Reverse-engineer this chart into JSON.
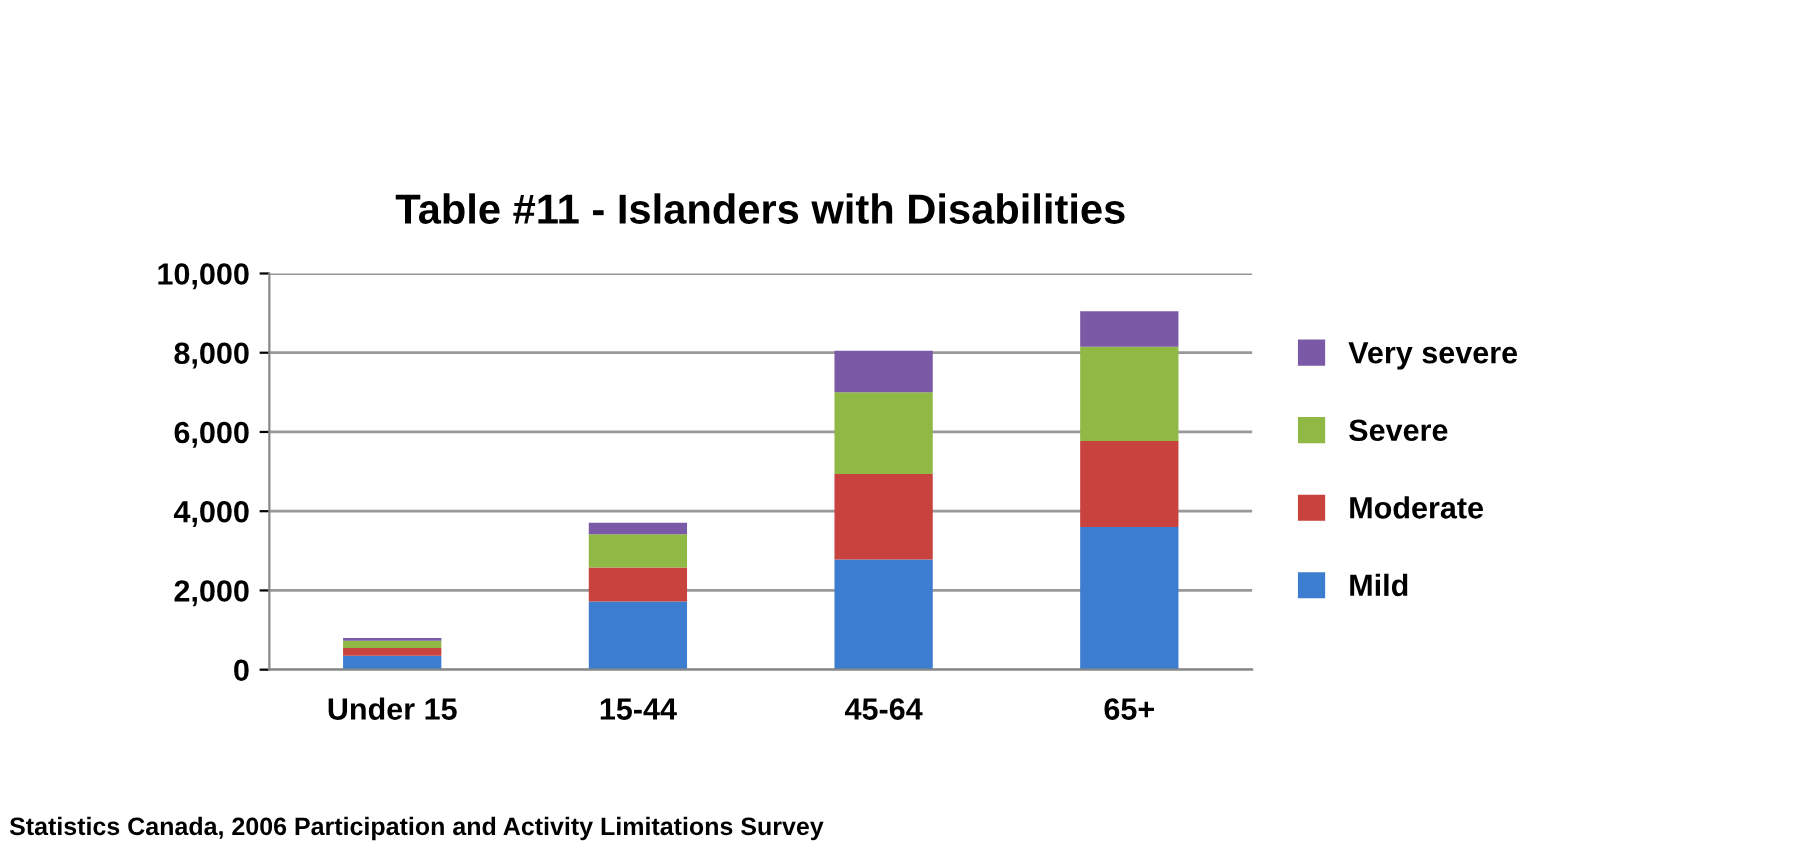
{
  "chart_data": {
    "type": "bar",
    "stacked": true,
    "title": "Table #11 - Islanders with Disabilities",
    "categories": [
      "Under 15",
      "15-44",
      "45-64",
      "65+"
    ],
    "series": [
      {
        "name": "Mild",
        "color": "#3c7dd0",
        "values": [
          350,
          1720,
          2780,
          3600
        ]
      },
      {
        "name": "Moderate",
        "color": "#c8423e",
        "values": [
          200,
          860,
          2160,
          2170
        ]
      },
      {
        "name": "Severe",
        "color": "#8fb944",
        "values": [
          180,
          840,
          2060,
          2380
        ]
      },
      {
        "name": "Very severe",
        "color": "#7a5aa6",
        "values": [
          70,
          290,
          1050,
          900
        ]
      }
    ],
    "ylim": [
      0,
      10000
    ],
    "yticks": [
      {
        "value": 0,
        "label": "0"
      },
      {
        "value": 2000,
        "label": "2,000"
      },
      {
        "value": 4000,
        "label": "4,000"
      },
      {
        "value": 6000,
        "label": "6,000"
      },
      {
        "value": 8000,
        "label": "8,000"
      },
      {
        "value": 10000,
        "label": "10,000"
      }
    ],
    "grid": "y",
    "legend": "right",
    "annotations": [
      "Statistics Canada, 2006 Participation and Activity Limitations Survey"
    ]
  }
}
